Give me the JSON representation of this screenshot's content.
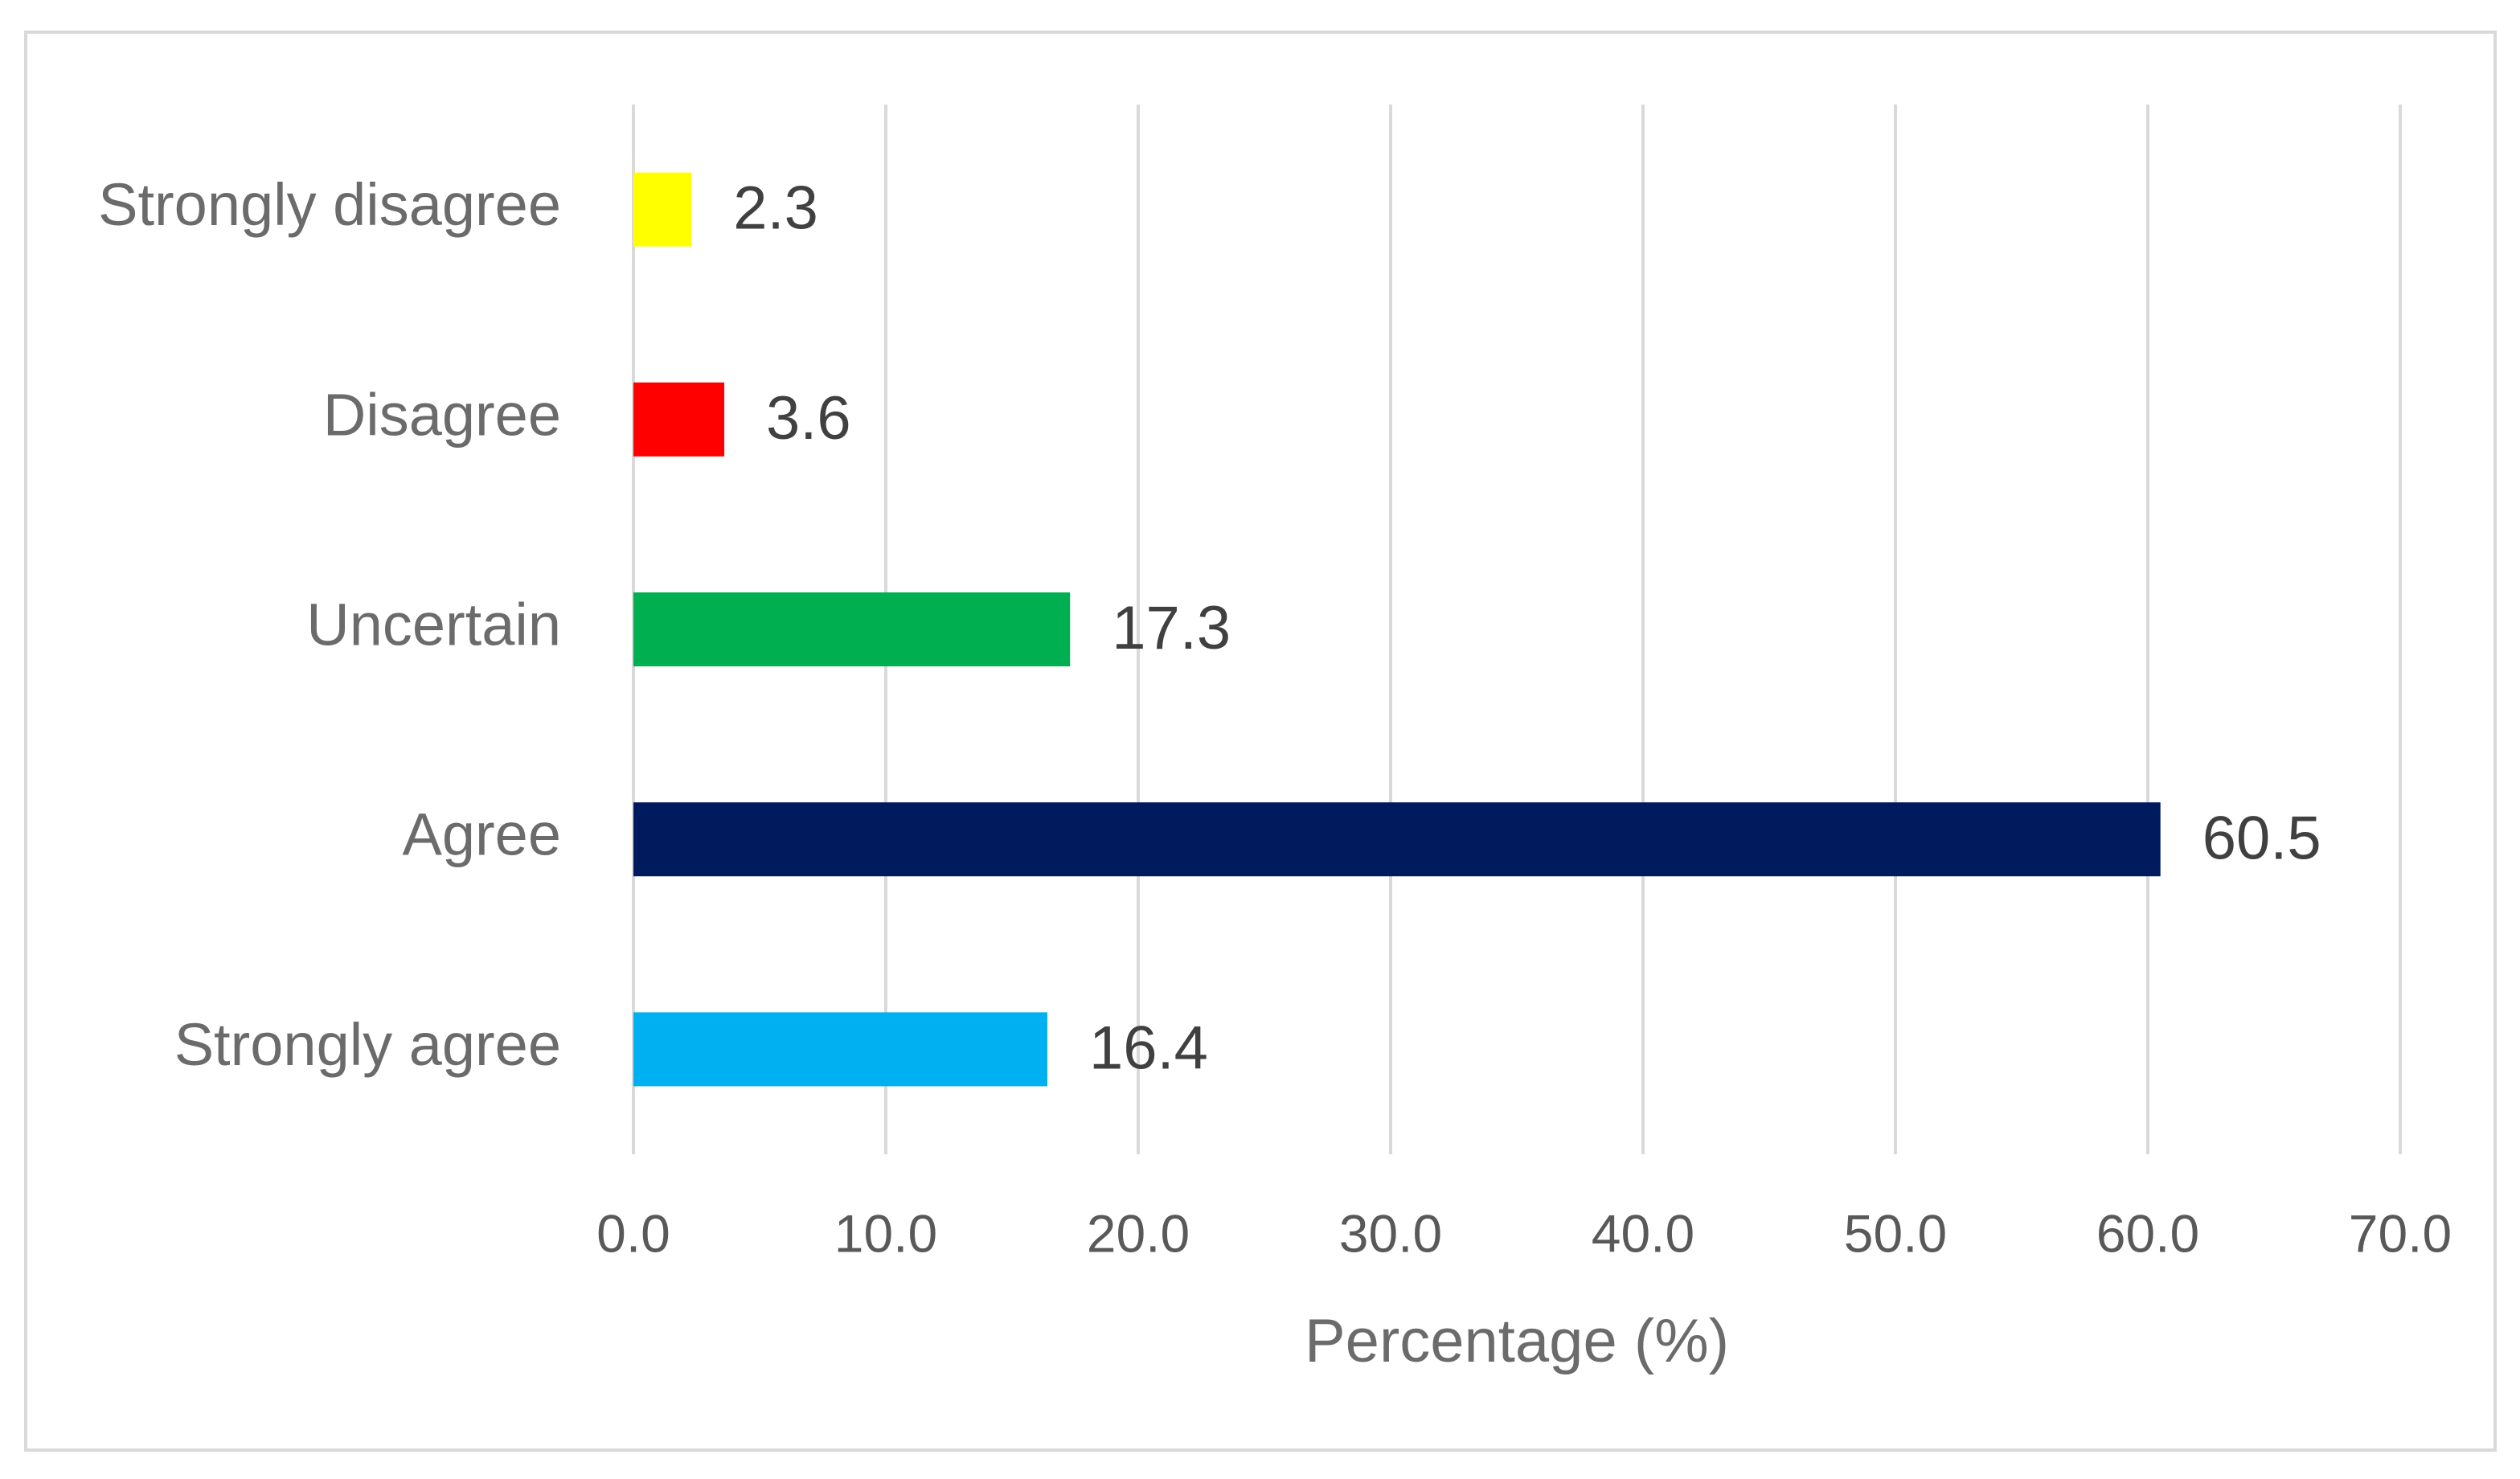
{
  "chart_data": {
    "type": "bar",
    "orientation": "horizontal",
    "x_label": "Percentage (%)",
    "categories": [
      "Strongly disagree",
      "Disagree",
      "Uncertain",
      "Agree",
      "Strongly agree"
    ],
    "values": [
      2.3,
      3.6,
      17.3,
      60.5,
      16.4
    ],
    "colors": [
      "#ffff00",
      "#ff0000",
      "#00b050",
      "#001a5e",
      "#00b0f0"
    ],
    "xlim": [
      0,
      70
    ],
    "xticks": [
      {
        "value": 0,
        "label": "0.0"
      },
      {
        "value": 10,
        "label": "10.0"
      },
      {
        "value": 20,
        "label": "20.0"
      },
      {
        "value": 30,
        "label": "30.0"
      },
      {
        "value": 40,
        "label": "40.0"
      },
      {
        "value": 50,
        "label": "50.0"
      },
      {
        "value": 60,
        "label": "60.0"
      },
      {
        "value": 70,
        "label": "70.0"
      }
    ],
    "grid": true
  }
}
